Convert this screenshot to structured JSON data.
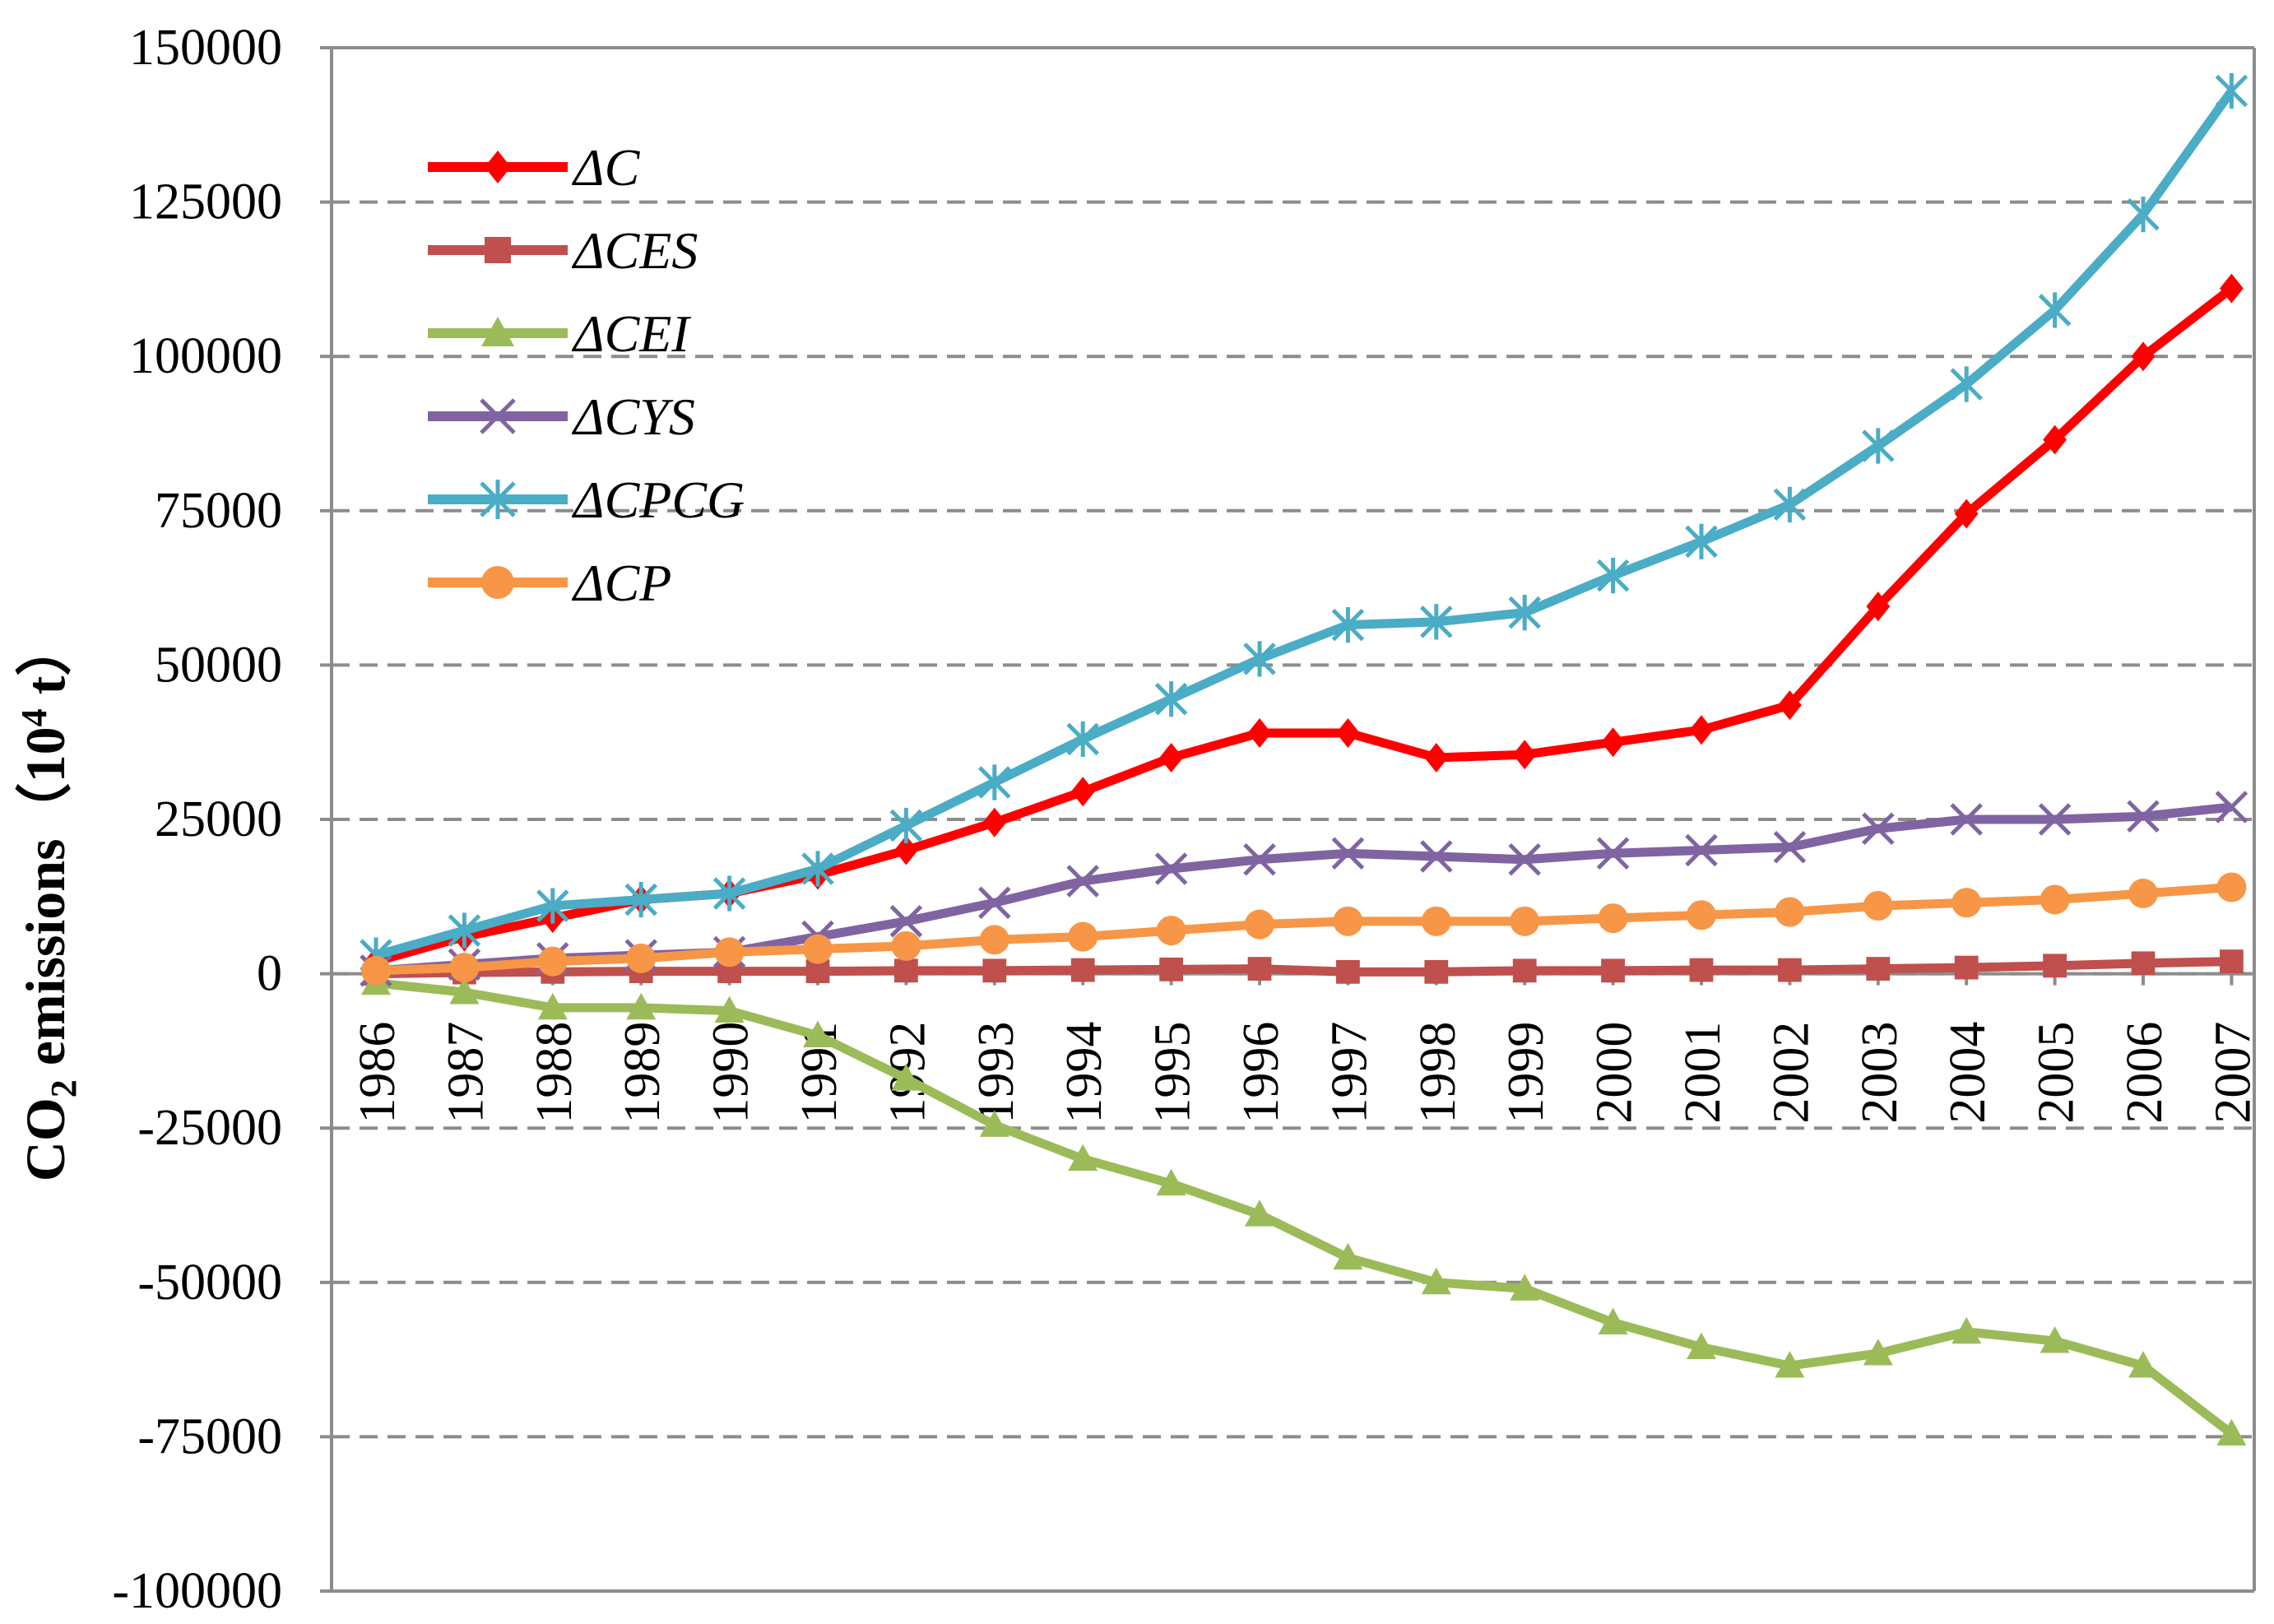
{
  "chart_data": {
    "type": "line",
    "title": "",
    "xlabel": "",
    "ylabel_main": "CO",
    "ylabel_sub": "2",
    "ylabel_rest": " emissions（10",
    "ylabel_sup": "4",
    "ylabel_end": " t）",
    "ylim": [
      -100000,
      150000
    ],
    "y_ticks": [
      150000,
      125000,
      100000,
      75000,
      50000,
      25000,
      0,
      -25000,
      -50000,
      -75000,
      -100000
    ],
    "y_tick_labels": [
      "150000",
      "125000",
      "100000",
      "75000",
      "50000",
      "25000",
      "0",
      "-25000",
      "-50000",
      "-75000",
      "-100000"
    ],
    "grid": "horizontal-dashed",
    "legend_position": "top-left",
    "categories": [
      "1986",
      "1987",
      "1988",
      "1989",
      "1990",
      "1991",
      "1992",
      "1993",
      "1994",
      "1995",
      "1996",
      "1997",
      "1998",
      "1999",
      "2000",
      "2001",
      "2002",
      "2003",
      "2004",
      "2005",
      "2006",
      "2007"
    ],
    "series": [
      {
        "name": "ΔC",
        "color": "#ff0000",
        "marker": "diamond",
        "values": [
          2000,
          6000,
          9000,
          12000,
          13000,
          16000,
          20000,
          24500,
          29500,
          35000,
          39000,
          39000,
          35000,
          35500,
          37500,
          39500,
          43500,
          59500,
          74500,
          86500,
          100000,
          111000
        ]
      },
      {
        "name": "ΔCES",
        "color": "#c0504d",
        "marker": "square",
        "values": [
          0,
          200,
          300,
          400,
          400,
          400,
          500,
          500,
          600,
          700,
          800,
          300,
          300,
          500,
          500,
          600,
          600,
          800,
          1000,
          1300,
          1700,
          2000
        ]
      },
      {
        "name": "ΔCEI",
        "color": "#9bbb59",
        "marker": "triangle",
        "values": [
          -1500,
          -3000,
          -5500,
          -5500,
          -6000,
          -10000,
          -17000,
          -24500,
          -30000,
          -34000,
          -39000,
          -46000,
          -50000,
          -51000,
          -56500,
          -60500,
          -63500,
          -61500,
          -58000,
          -59500,
          -63500,
          -74500
        ]
      },
      {
        "name": "ΔCYS",
        "color": "#8064a2",
        "marker": "x",
        "values": [
          500,
          1500,
          2500,
          3000,
          3500,
          6000,
          8500,
          11500,
          15000,
          17000,
          18500,
          19500,
          19000,
          18500,
          19500,
          20000,
          20500,
          23500,
          25000,
          25000,
          25500,
          27000
        ]
      },
      {
        "name": "ΔCPCG",
        "color": "#4bacc6",
        "marker": "star",
        "values": [
          3000,
          7000,
          11000,
          12000,
          13000,
          17000,
          24000,
          31000,
          38000,
          44500,
          51000,
          56500,
          57000,
          58500,
          64500,
          70000,
          76000,
          85500,
          95500,
          107500,
          123000,
          143000
        ]
      },
      {
        "name": "ΔCP",
        "color": "#f79646",
        "marker": "circle",
        "values": [
          500,
          1000,
          2000,
          2500,
          3500,
          4000,
          4500,
          5500,
          6000,
          7000,
          8000,
          8500,
          8500,
          8500,
          9000,
          9500,
          10000,
          11000,
          11500,
          12000,
          13000,
          14000
        ]
      }
    ]
  }
}
